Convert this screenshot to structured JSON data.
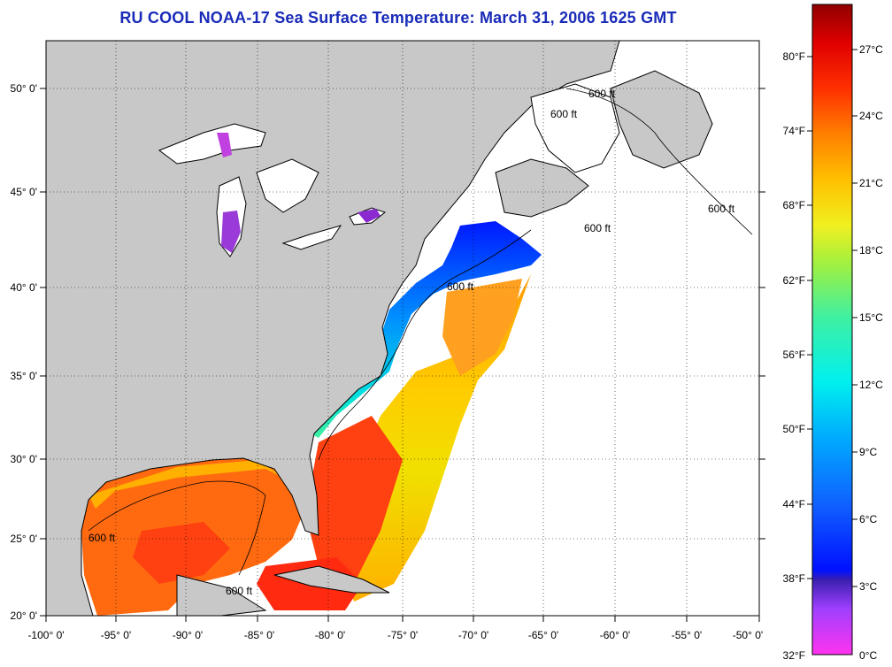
{
  "title": "RU COOL  NOAA-17  Sea Surface Temperature:  March 31, 2006 1625 GMT",
  "longitude_ticks": [
    "-100° 0'",
    "-95° 0'",
    "-90° 0'",
    "-85° 0'",
    "-80° 0'",
    "-75° 0'",
    "-70° 0'",
    "-65° 0'",
    "-60° 0'",
    "-55° 0'",
    "-50° 0'"
  ],
  "latitude_ticks": [
    "50° 0'",
    "45° 0'",
    "40° 0'",
    "35° 0'",
    "30° 0'",
    "25° 0'",
    "20° 0'"
  ],
  "depth_contour_labels": [
    "600 ft",
    "600 ft",
    "600 ft",
    "600 ft",
    "600 ft",
    "600 ft",
    "600 ft"
  ],
  "colorbar": {
    "fahrenheit_labels": [
      "80°F",
      "74°F",
      "68°F",
      "62°F",
      "56°F",
      "50°F",
      "44°F",
      "38°F",
      "32°F"
    ],
    "celsius_labels": [
      "27°C",
      "24°C",
      "21°C",
      "18°C",
      "15°C",
      "12°C",
      "9°C",
      "6°C",
      "3°C",
      "0°C"
    ]
  },
  "colors": {
    "land": "#c8c8c8",
    "no_data": "#ffffff",
    "title": "#1a2bb8"
  }
}
